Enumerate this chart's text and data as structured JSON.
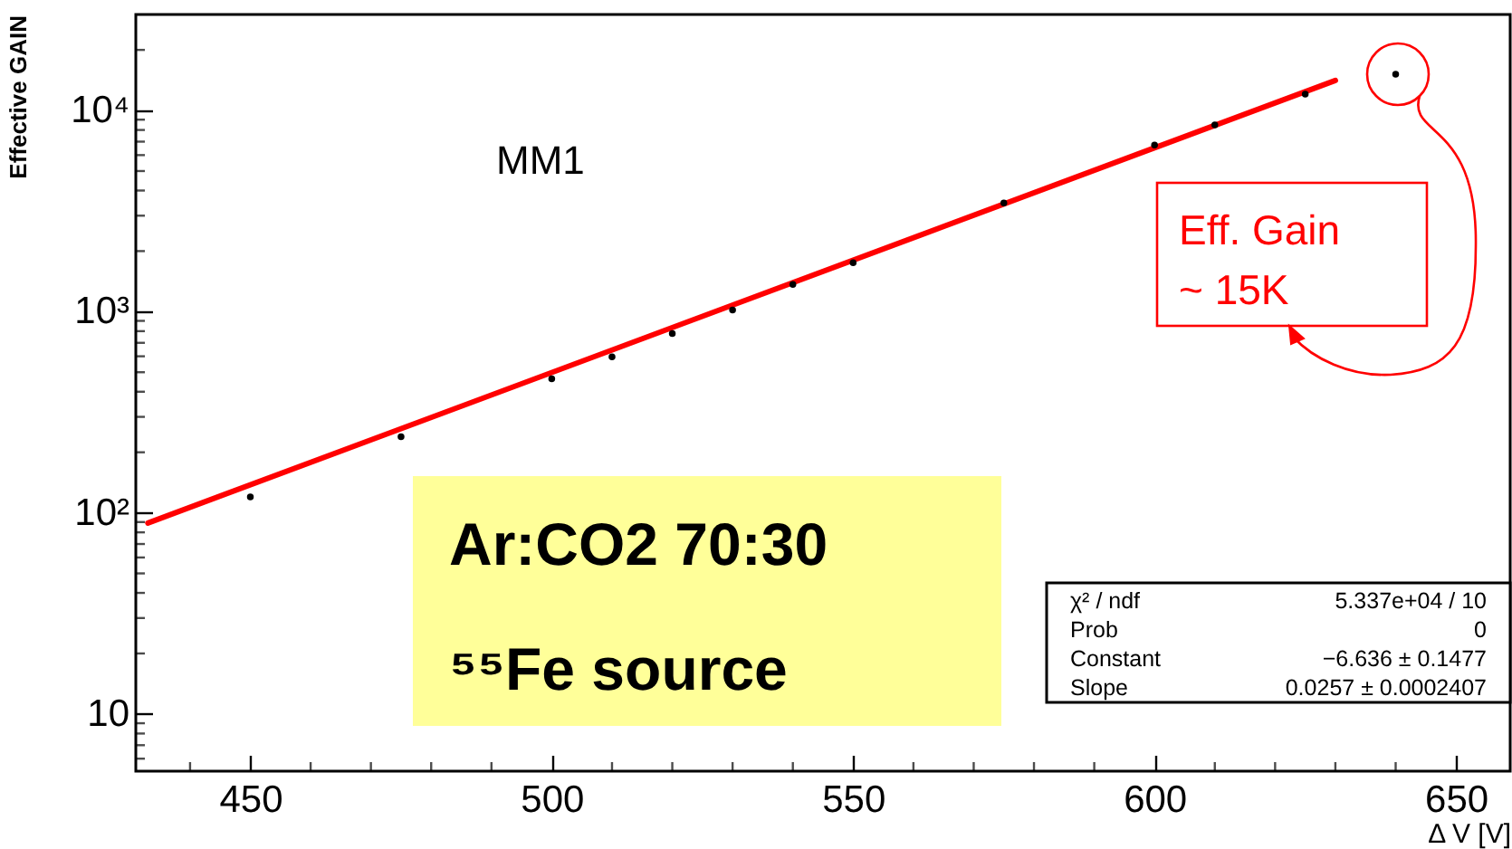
{
  "chart_data": {
    "type": "scatter",
    "xlabel": "Δ V [V]",
    "ylabel": "Effective GAIN",
    "log": "y",
    "grid": false,
    "xlim": [
      431,
      659
    ],
    "ylim": [
      5.2,
      30000
    ],
    "xticks": [
      {
        "value": 440,
        "label": null
      },
      450,
      {
        "value": 460,
        "label": null
      },
      {
        "value": 470,
        "label": null
      },
      {
        "value": 480,
        "label": null
      },
      {
        "value": 490,
        "label": null
      },
      500,
      {
        "value": 510,
        "label": null
      },
      {
        "value": 520,
        "label": null
      },
      {
        "value": 530,
        "label": null
      },
      {
        "value": 540,
        "label": null
      },
      550,
      {
        "value": 560,
        "label": null
      },
      {
        "value": 570,
        "label": null
      },
      {
        "value": 580,
        "label": null
      },
      {
        "value": 590,
        "label": null
      },
      600,
      {
        "value": 610,
        "label": null
      },
      {
        "value": 620,
        "label": null
      },
      {
        "value": 630,
        "label": null
      },
      {
        "value": 640,
        "label": null
      },
      650
    ],
    "yticks": [
      {
        "value": 6,
        "label": null
      },
      {
        "value": 7,
        "label": null
      },
      {
        "value": 8,
        "label": null
      },
      {
        "value": 9,
        "label": null
      },
      10,
      {
        "value": 20,
        "label": null
      },
      {
        "value": 30,
        "label": null
      },
      {
        "value": 40,
        "label": null
      },
      {
        "value": 50,
        "label": null
      },
      {
        "value": 60,
        "label": null
      },
      {
        "value": 70,
        "label": null
      },
      {
        "value": 80,
        "label": null
      },
      {
        "value": 90,
        "label": null
      },
      {
        "value": 100,
        "label": "10²"
      },
      {
        "value": 200,
        "label": null
      },
      {
        "value": 300,
        "label": null
      },
      {
        "value": 400,
        "label": null
      },
      {
        "value": 500,
        "label": null
      },
      {
        "value": 600,
        "label": null
      },
      {
        "value": 700,
        "label": null
      },
      {
        "value": 800,
        "label": null
      },
      {
        "value": 900,
        "label": null
      },
      {
        "value": 1000,
        "label": "10³"
      },
      {
        "value": 2000,
        "label": null
      },
      {
        "value": 3000,
        "label": null
      },
      {
        "value": 4000,
        "label": null
      },
      {
        "value": 5000,
        "label": null
      },
      {
        "value": 6000,
        "label": null
      },
      {
        "value": 7000,
        "label": null
      },
      {
        "value": 8000,
        "label": null
      },
      {
        "value": 9000,
        "label": null
      },
      {
        "value": 10000,
        "label": "10⁴"
      },
      {
        "value": 20000,
        "label": null
      }
    ],
    "series": [
      {
        "marker": "circle",
        "color": "#000000",
        "x": [
          450,
          475,
          500,
          510,
          520,
          530,
          540,
          550,
          575,
          600,
          610,
          625,
          640
        ],
        "values": [
          120,
          239,
          464,
          596,
          779,
          1020,
          1365,
          1750,
          3470,
          6740,
          8470,
          12050,
          15140
        ]
      },
      {
        "type": "line",
        "color": "#ff0000",
        "x": [
          433,
          630
        ],
        "values": [
          89,
          14100
        ]
      }
    ],
    "annotations": [
      "MM1",
      "Ar:CO2 70:30",
      "⁵⁵Fe source",
      "χ² / ndf",
      "5.337e+04 / 10",
      "Prob",
      "0",
      "Constant",
      "−6.636 ± 0.1477",
      "Slope",
      "0.0257 ± 0.0002407",
      "Eff. Gain",
      "~ 15K"
    ]
  }
}
